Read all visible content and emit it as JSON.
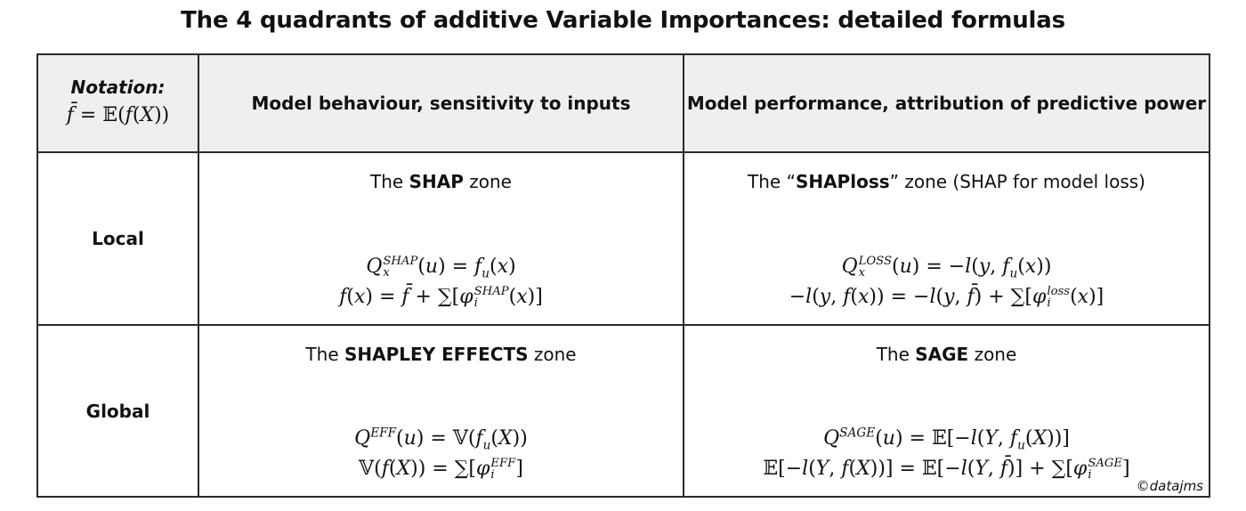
{
  "title": "The 4 quadrants of additive Variable Importances: detailed formulas",
  "notation": {
    "label": "Notation",
    "colon": ":",
    "formula": "f̄ = 𝔼(f(X))"
  },
  "columns": {
    "behaviour": "Model behaviour, sensitivity to inputs",
    "performance": "Model performance, attribution of predictive power"
  },
  "rows": {
    "local": "Local",
    "global": "Global"
  },
  "zones": {
    "shap": {
      "pre": "The ",
      "name": "SHAP",
      "post": " zone",
      "formula1": "Q_x^SHAP(u) = f_u(x)",
      "formula2": "f(x) = f̄ + ∑[φ_i^SHAP(x)]"
    },
    "shaploss": {
      "pre": "The “",
      "name": "SHAPloss",
      "post": "” zone (SHAP for model loss)",
      "formula1": "Q_x^LOSS(u) = −l(y, f_u(x))",
      "formula2": "−l(y, f(x)) = −l(y, f̄) + ∑[φ_i^loss(x)]"
    },
    "effects": {
      "pre": "The ",
      "name": "SHAPLEY EFFECTS",
      "post": " zone",
      "formula1": "Q^EFF(u) = 𝕍(f_u(X))",
      "formula2": "𝕍(f(X)) = ∑[φ_i^EFF]"
    },
    "sage": {
      "pre": "The ",
      "name": "SAGE",
      "post": " zone",
      "formula1": "Q^SAGE(u) = 𝔼[−l(Y, f_u(X))]",
      "formula2": "𝔼[−l(Y, f(X))] = 𝔼[−l(Y, f̄)] + ∑[φ_i^SAGE]"
    }
  },
  "copyright": "©datajms"
}
